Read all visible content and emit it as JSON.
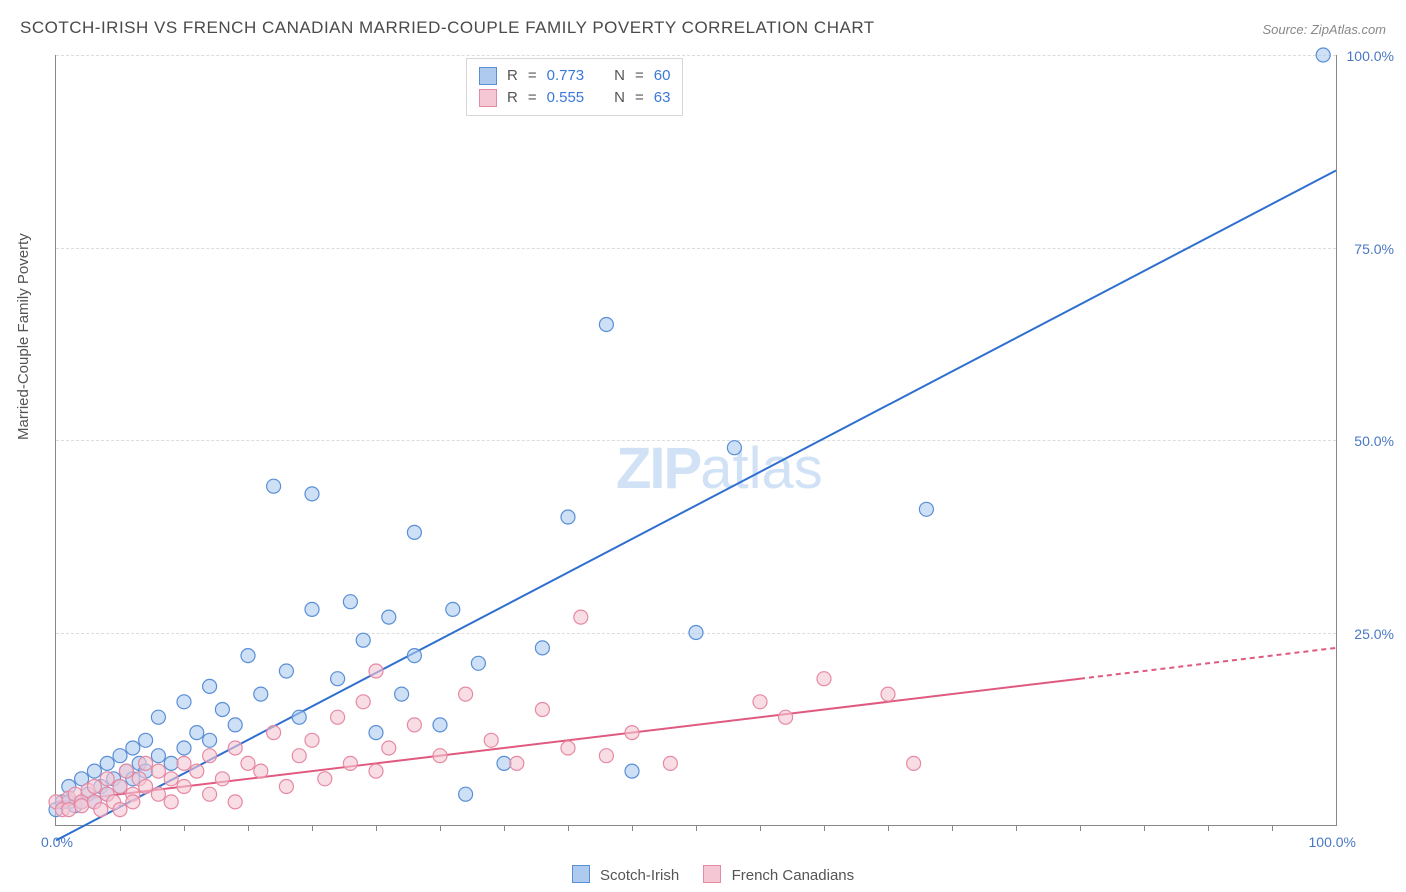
{
  "title": "SCOTCH-IRISH VS FRENCH CANADIAN MARRIED-COUPLE FAMILY POVERTY CORRELATION CHART",
  "source": "Source: ZipAtlas.com",
  "ylabel": "Married-Couple Family Poverty",
  "watermark_bold": "ZIP",
  "watermark_light": "atlas",
  "chart": {
    "type": "scatter",
    "xlim": [
      0,
      100
    ],
    "ylim": [
      0,
      100
    ],
    "x_axis_label_min": "0.0%",
    "x_axis_label_max": "100.0%",
    "y_ticks": [
      25,
      50,
      75,
      100
    ],
    "y_tick_labels": [
      "25.0%",
      "50.0%",
      "75.0%",
      "100.0%"
    ],
    "x_minor_ticks": [
      5,
      10,
      15,
      20,
      25,
      30,
      35,
      40,
      45,
      50,
      55,
      60,
      65,
      70,
      75,
      80,
      85,
      90,
      95
    ],
    "background_color": "#ffffff",
    "grid_color": "#dcdcdc",
    "axis_color": "#888888",
    "tick_label_color": "#4a78c4",
    "marker_radius": 7,
    "marker_stroke_width": 1.2,
    "trendline_width": 2,
    "series": [
      {
        "name": "Scotch-Irish",
        "fill": "#aecbef",
        "stroke": "#5a8fd6",
        "line_color": "#2f6fd0",
        "R": "0.773",
        "N": "60",
        "trend": {
          "x1": 0,
          "y1": -2,
          "x2": 100,
          "y2": 85,
          "dashed_from_x": null
        },
        "points": [
          [
            0,
            2
          ],
          [
            0.5,
            3
          ],
          [
            1,
            3
          ],
          [
            1,
            5
          ],
          [
            1.5,
            2.5
          ],
          [
            2,
            3
          ],
          [
            2,
            6
          ],
          [
            2.5,
            4
          ],
          [
            3,
            3
          ],
          [
            3,
            7
          ],
          [
            3.5,
            5
          ],
          [
            4,
            4
          ],
          [
            4,
            8
          ],
          [
            4.5,
            6
          ],
          [
            5,
            5
          ],
          [
            5,
            9
          ],
          [
            5.5,
            7
          ],
          [
            6,
            6
          ],
          [
            6,
            10
          ],
          [
            6.5,
            8
          ],
          [
            7,
            7
          ],
          [
            7,
            11
          ],
          [
            8,
            9
          ],
          [
            8,
            14
          ],
          [
            9,
            8
          ],
          [
            10,
            10
          ],
          [
            10,
            16
          ],
          [
            11,
            12
          ],
          [
            12,
            11
          ],
          [
            12,
            18
          ],
          [
            13,
            15
          ],
          [
            14,
            13
          ],
          [
            15,
            22
          ],
          [
            16,
            17
          ],
          [
            17,
            44
          ],
          [
            18,
            20
          ],
          [
            19,
            14
          ],
          [
            20,
            28
          ],
          [
            20,
            43
          ],
          [
            22,
            19
          ],
          [
            23,
            29
          ],
          [
            24,
            24
          ],
          [
            25,
            12
          ],
          [
            26,
            27
          ],
          [
            27,
            17
          ],
          [
            28,
            22
          ],
          [
            28,
            38
          ],
          [
            30,
            13
          ],
          [
            31,
            28
          ],
          [
            32,
            4
          ],
          [
            33,
            21
          ],
          [
            35,
            8
          ],
          [
            38,
            23
          ],
          [
            40,
            40
          ],
          [
            43,
            65
          ],
          [
            45,
            7
          ],
          [
            50,
            25
          ],
          [
            53,
            49
          ],
          [
            68,
            41
          ],
          [
            99,
            100
          ]
        ]
      },
      {
        "name": "French Canadians",
        "fill": "#f5c6d3",
        "stroke": "#e68aa3",
        "line_color": "#e05a80",
        "R": "0.555",
        "N": "63",
        "trend": {
          "x1": 0,
          "y1": 3,
          "x2": 100,
          "y2": 23,
          "dashed_from_x": 80
        },
        "points": [
          [
            0,
            3
          ],
          [
            0.5,
            2
          ],
          [
            1,
            3.5
          ],
          [
            1,
            2
          ],
          [
            1.5,
            4
          ],
          [
            2,
            3
          ],
          [
            2,
            2.5
          ],
          [
            2.5,
            4.5
          ],
          [
            3,
            3
          ],
          [
            3,
            5
          ],
          [
            3.5,
            2
          ],
          [
            4,
            4
          ],
          [
            4,
            6
          ],
          [
            4.5,
            3
          ],
          [
            5,
            5
          ],
          [
            5,
            2
          ],
          [
            5.5,
            7
          ],
          [
            6,
            4
          ],
          [
            6,
            3
          ],
          [
            6.5,
            6
          ],
          [
            7,
            5
          ],
          [
            7,
            8
          ],
          [
            8,
            4
          ],
          [
            8,
            7
          ],
          [
            9,
            6
          ],
          [
            9,
            3
          ],
          [
            10,
            8
          ],
          [
            10,
            5
          ],
          [
            11,
            7
          ],
          [
            12,
            9
          ],
          [
            12,
            4
          ],
          [
            13,
            6
          ],
          [
            14,
            10
          ],
          [
            14,
            3
          ],
          [
            15,
            8
          ],
          [
            16,
            7
          ],
          [
            17,
            12
          ],
          [
            18,
            5
          ],
          [
            19,
            9
          ],
          [
            20,
            11
          ],
          [
            21,
            6
          ],
          [
            22,
            14
          ],
          [
            23,
            8
          ],
          [
            24,
            16
          ],
          [
            25,
            7
          ],
          [
            25,
            20
          ],
          [
            26,
            10
          ],
          [
            28,
            13
          ],
          [
            30,
            9
          ],
          [
            32,
            17
          ],
          [
            34,
            11
          ],
          [
            36,
            8
          ],
          [
            38,
            15
          ],
          [
            40,
            10
          ],
          [
            41,
            27
          ],
          [
            43,
            9
          ],
          [
            45,
            12
          ],
          [
            48,
            8
          ],
          [
            55,
            16
          ],
          [
            57,
            14
          ],
          [
            60,
            19
          ],
          [
            65,
            17
          ],
          [
            67,
            8
          ]
        ]
      }
    ]
  },
  "stats_legend": {
    "R_label": "R",
    "N_label": "N",
    "eq": "="
  },
  "series_legend": {
    "label1": "Scotch-Irish",
    "label2": "French Canadians"
  }
}
